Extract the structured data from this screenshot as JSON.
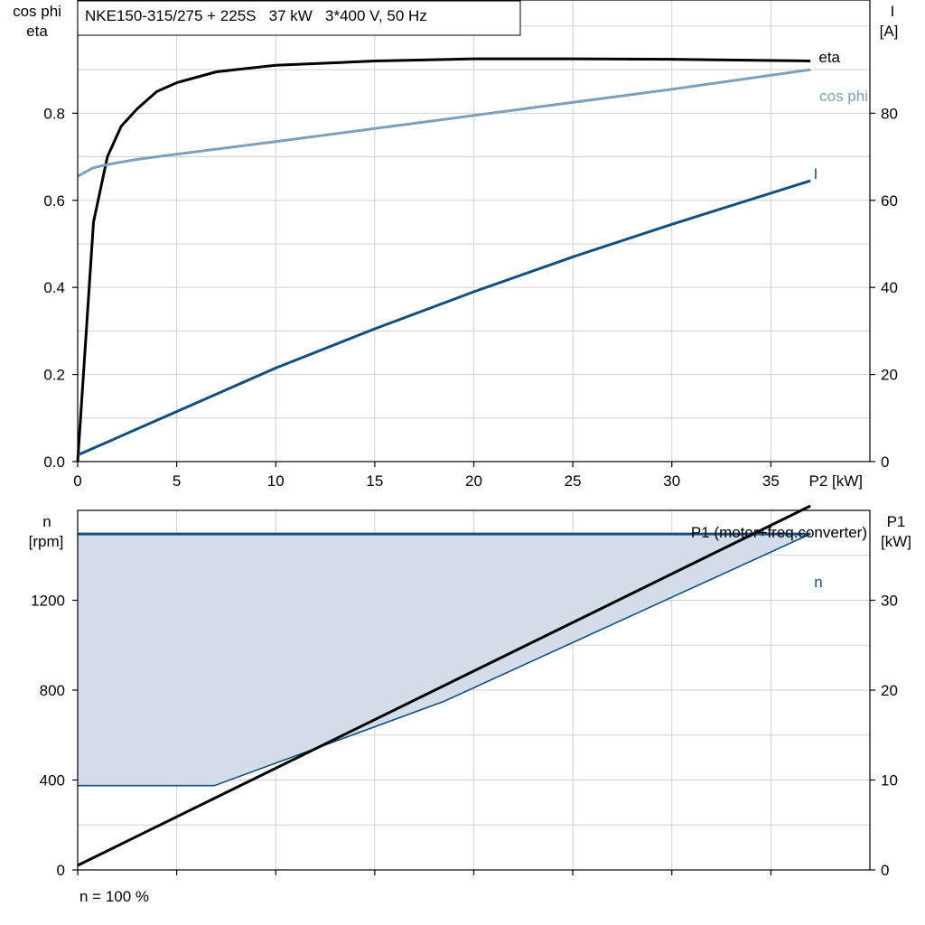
{
  "title": "NKE150-315/275 + 225S   37 kW   3*400 V, 50 Hz",
  "footer": "n = 100 %",
  "colors": {
    "eta": "#000000",
    "cos_phi": "#7d9fbe",
    "current": "#124f80",
    "n": "#124f80",
    "n_fill": "#d2dde9",
    "p1": "#000000"
  },
  "chart_data": [
    {
      "type": "line",
      "xlabel": "P2 [kW]",
      "ylabel_left": [
        "cos phi",
        "eta"
      ],
      "ylabel_right": [
        "I",
        "[A]"
      ],
      "xlim": [
        0,
        40
      ],
      "ylim_left": [
        0,
        1.06
      ],
      "ylim_right": [
        0,
        106
      ],
      "xticks": [
        0,
        5,
        10,
        15,
        20,
        25,
        30,
        35
      ],
      "yticks_left": [
        0.0,
        0.2,
        0.4,
        0.6,
        0.8
      ],
      "ytick_labels_left": [
        "0.0",
        "0.2",
        "0.4",
        "0.6",
        "0.8"
      ],
      "yticks_right": [
        0,
        20,
        40,
        60,
        80
      ],
      "grid": true,
      "series": [
        {
          "name": "eta",
          "axis": "left",
          "x": [
            0,
            0.8,
            1.5,
            2.2,
            3,
            4,
            5,
            7,
            10,
            15,
            20,
            25,
            30,
            37
          ],
          "y": [
            0.0,
            0.55,
            0.7,
            0.77,
            0.81,
            0.85,
            0.87,
            0.895,
            0.91,
            0.92,
            0.925,
            0.925,
            0.924,
            0.92
          ]
        },
        {
          "name": "cos phi",
          "axis": "left",
          "x": [
            0,
            0.8,
            1.5,
            3,
            5,
            10,
            20,
            30,
            37
          ],
          "y": [
            0.655,
            0.675,
            0.682,
            0.694,
            0.706,
            0.735,
            0.795,
            0.855,
            0.9
          ]
        },
        {
          "name": "I",
          "axis": "right",
          "x": [
            0,
            5,
            10,
            15,
            20,
            25,
            30,
            37
          ],
          "y": [
            1.5,
            11.5,
            21.5,
            30.5,
            39,
            47,
            54.5,
            64.5
          ]
        }
      ]
    },
    {
      "type": "area",
      "xlim": [
        0,
        40
      ],
      "ylabel_left": [
        "n",
        "[rpm]"
      ],
      "ylabel_right": [
        "P1",
        "[kW]"
      ],
      "ylim_left": [
        0,
        1600
      ],
      "ylim_right": [
        0,
        40
      ],
      "yticks_left": [
        0,
        400,
        800,
        1200
      ],
      "yticks_right": [
        0,
        10,
        20,
        30
      ],
      "grid": true,
      "series": [
        {
          "name": "n",
          "axis": "left",
          "x_top": [
            0,
            37
          ],
          "y_top": [
            1495,
            1495
          ],
          "x_lower": [
            0,
            6.9,
            18.5,
            37
          ],
          "y_lower": [
            375,
            375,
            750,
            1495
          ]
        },
        {
          "name": "P1 (motor+freq.converter)",
          "axis": "right",
          "x": [
            0,
            37
          ],
          "y": [
            0.5,
            40.5
          ]
        }
      ]
    }
  ]
}
